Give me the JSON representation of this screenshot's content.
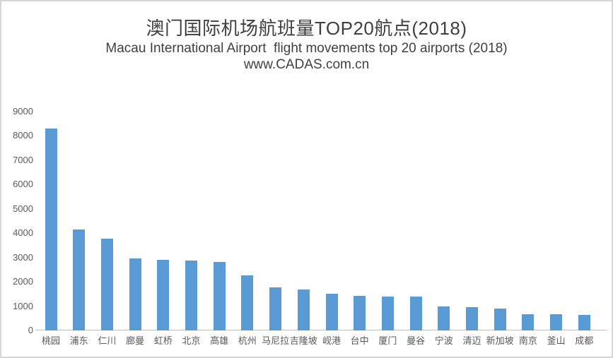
{
  "header": {
    "title": "澳门国际机场航班量TOP20航点(2018)",
    "subtitle": "Macau International Airport  flight movements top 20 airports (2018)",
    "website": "www.CADAS.com.cn"
  },
  "chart_data": {
    "type": "bar",
    "title": "澳门国际机场航班量TOP20航点(2018)",
    "subtitle": "Macau International Airport  flight movements top 20 airports (2018)",
    "source": "www.CADAS.com.cn",
    "categories": [
      "桃园",
      "浦东",
      "仁川",
      "廊曼",
      "虹桥",
      "北京",
      "高雄",
      "杭州",
      "马尼拉",
      "吉隆坡",
      "岘港",
      "台中",
      "厦门",
      "曼谷",
      "宁波",
      "清迈",
      "新加坡",
      "南京",
      "釜山",
      "成都"
    ],
    "values": [
      8310,
      4160,
      3770,
      2950,
      2910,
      2880,
      2820,
      2270,
      1760,
      1670,
      1520,
      1430,
      1400,
      1390,
      990,
      960,
      890,
      670,
      670,
      650
    ],
    "xlabel": "",
    "ylabel": "",
    "ylim": [
      0,
      9000
    ],
    "ytick_step": 1000,
    "ytick_labels": [
      "0",
      "1000",
      "2000",
      "3000",
      "4000",
      "5000",
      "6000",
      "7000",
      "8000",
      "9000"
    ],
    "grid": false,
    "legend": false,
    "bar_color": "#5B9BD5",
    "axis_text_color": "#595959",
    "axis_line_color": "#bfbfbf"
  }
}
